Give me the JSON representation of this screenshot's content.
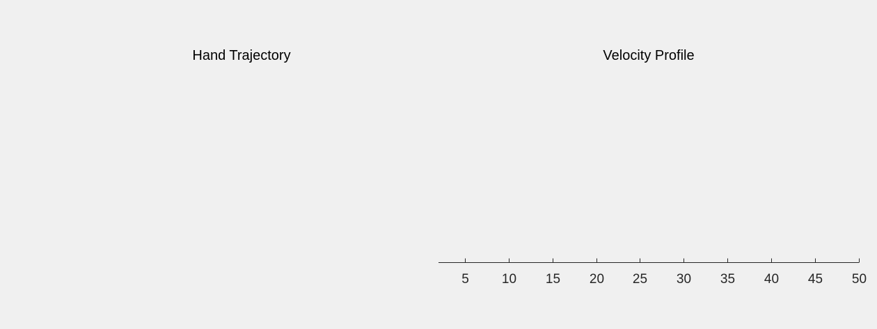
{
  "chart_data": [
    {
      "type": "line",
      "title": "Hand Trajectory",
      "xlabel": "",
      "ylabel": "",
      "series": [],
      "axes_visible": false,
      "grid": false
    },
    {
      "type": "line",
      "title": "Velocity Profile",
      "xlabel": "",
      "ylabel": "",
      "series": [],
      "xlim": [
        2,
        50
      ],
      "x_ticks": [
        5,
        10,
        15,
        20,
        25,
        30,
        35,
        40,
        45,
        50
      ],
      "x_tick_labels": [
        "5",
        "10",
        "15",
        "20",
        "25",
        "30",
        "35",
        "40",
        "45",
        "50"
      ],
      "y_axis_visible": false,
      "grid": false
    }
  ]
}
